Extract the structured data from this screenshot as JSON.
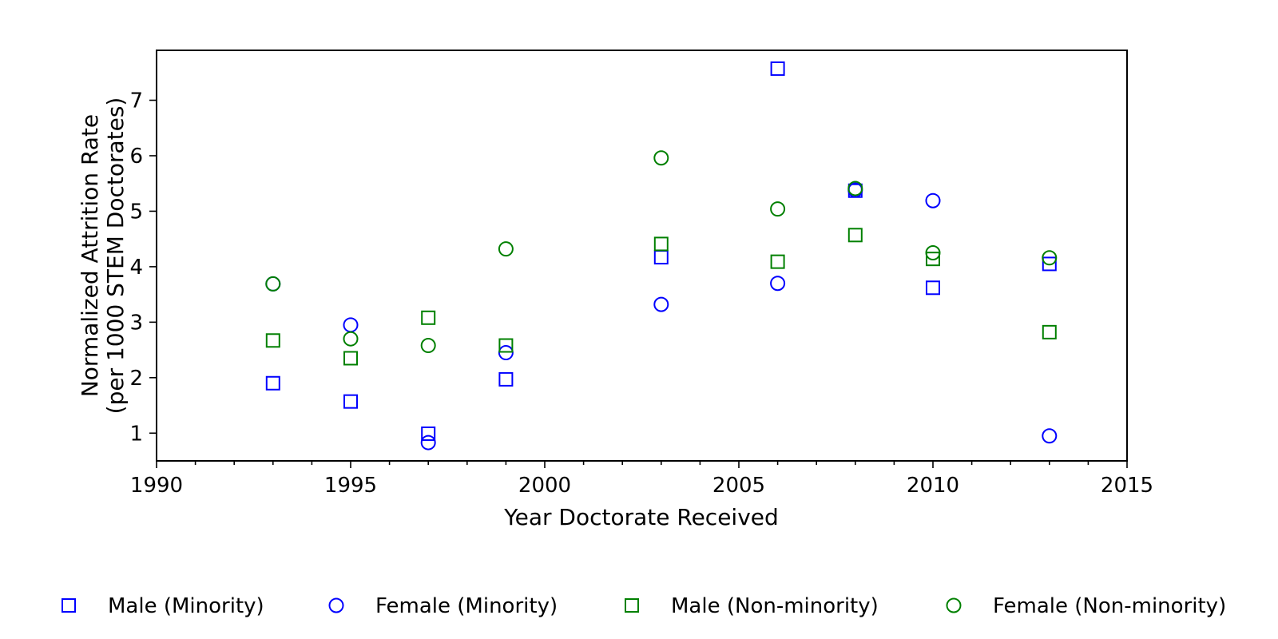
{
  "chart_data": {
    "type": "scatter",
    "xlabel": "Year Doctorate Received",
    "ylabel_lines": [
      "Normalized Attrition Rate",
      "(per 1000 STEM Doctorates)"
    ],
    "xlim": [
      1990,
      2015
    ],
    "ylim": [
      0.5,
      7.9
    ],
    "xticks": [
      1990,
      1995,
      2000,
      2005,
      2010,
      2015
    ],
    "xminor_step": 1,
    "yticks": [
      1,
      2,
      3,
      4,
      5,
      6,
      7
    ],
    "grid": false,
    "legend_position": "bottom",
    "series": [
      {
        "name": "Male (Minority)",
        "marker": "square",
        "color": "#0000ff",
        "x": [
          1993,
          1995,
          1997,
          1999,
          2003,
          2006,
          2008,
          2010,
          2013
        ],
        "y": [
          1.9,
          1.57,
          0.99,
          1.97,
          4.17,
          7.57,
          5.37,
          3.62,
          4.05
        ]
      },
      {
        "name": "Female (Minority)",
        "marker": "circle",
        "color": "#0000ff",
        "x": [
          1993,
          1995,
          1997,
          1999,
          2003,
          2006,
          2008,
          2010,
          2013
        ],
        "y": [
          3.69,
          2.95,
          0.83,
          2.45,
          3.32,
          3.7,
          5.38,
          5.19,
          0.95
        ]
      },
      {
        "name": "Male (Non-minority)",
        "marker": "square",
        "color": "#008000",
        "x": [
          1993,
          1995,
          1997,
          1999,
          2003,
          2006,
          2008,
          2010,
          2013
        ],
        "y": [
          2.67,
          2.35,
          3.08,
          2.58,
          4.41,
          4.09,
          4.57,
          4.14,
          2.82
        ]
      },
      {
        "name": "Female (Non-minority)",
        "marker": "circle",
        "color": "#008000",
        "x": [
          1993,
          1995,
          1997,
          1999,
          2003,
          2006,
          2008,
          2010,
          2013
        ],
        "y": [
          3.69,
          2.7,
          2.58,
          4.32,
          5.96,
          5.04,
          5.41,
          4.25,
          4.16
        ]
      }
    ]
  }
}
